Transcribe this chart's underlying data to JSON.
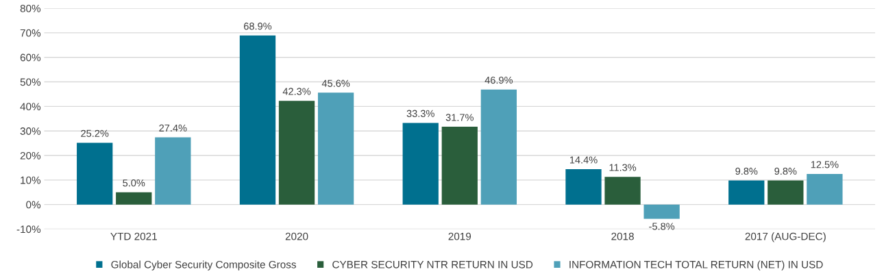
{
  "chart_data": {
    "type": "bar",
    "categories": [
      "YTD 2021",
      "2020",
      "2019",
      "2018",
      "2017 (AUG-DEC)"
    ],
    "series": [
      {
        "name": "Global Cyber Security Composite Gross",
        "color": "#00708f",
        "values": [
          25.2,
          68.9,
          33.3,
          14.4,
          9.8
        ],
        "value_labels": [
          "25.2%",
          "68.9%",
          "33.3%",
          "14.4%",
          "9.8%"
        ]
      },
      {
        "name": "CYBER SECURITY NTR RETURN IN USD",
        "color": "#2a5e3b",
        "values": [
          5.0,
          42.3,
          31.7,
          11.3,
          9.8
        ],
        "value_labels": [
          "5.0%",
          "42.3%",
          "31.7%",
          "11.3%",
          "9.8%"
        ]
      },
      {
        "name": "INFORMATION TECH TOTAL RETURN (NET) IN USD",
        "color": "#4fa0b8",
        "values": [
          27.4,
          45.6,
          46.9,
          -5.8,
          12.5
        ],
        "value_labels": [
          "27.4%",
          "45.6%",
          "46.9%",
          "-5.8%",
          "12.5%"
        ]
      }
    ],
    "ylim": [
      -10,
      80
    ],
    "yticks": [
      {
        "value": -10,
        "label": "-10%"
      },
      {
        "value": 0,
        "label": "0%"
      },
      {
        "value": 10,
        "label": "10%"
      },
      {
        "value": 20,
        "label": "20%"
      },
      {
        "value": 30,
        "label": "30%"
      },
      {
        "value": 40,
        "label": "40%"
      },
      {
        "value": 50,
        "label": "50%"
      },
      {
        "value": 60,
        "label": "60%"
      },
      {
        "value": 70,
        "label": "70%"
      },
      {
        "value": 80,
        "label": "80%"
      }
    ],
    "grid": "y",
    "legend": "bottom"
  }
}
